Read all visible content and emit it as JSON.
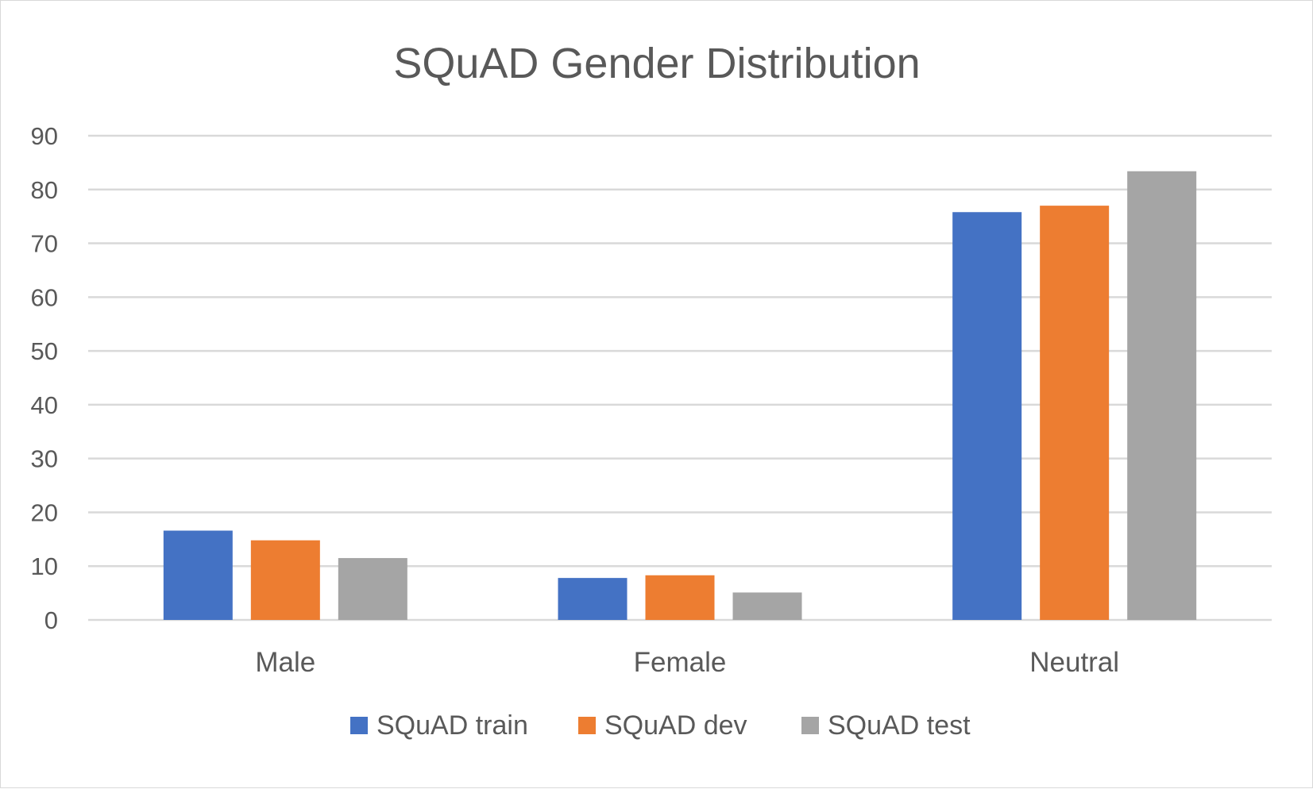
{
  "chart_data": {
    "type": "bar",
    "title": "SQuAD Gender Distribution",
    "xlabel": "",
    "ylabel": "",
    "categories": [
      "Male",
      "Female",
      "Neutral"
    ],
    "series": [
      {
        "name": "SQuAD train",
        "values": [
          16.6,
          7.8,
          75.8
        ],
        "color": "#4472c4"
      },
      {
        "name": "SQuAD dev",
        "values": [
          14.8,
          8.3,
          77.0
        ],
        "color": "#ed7d31"
      },
      {
        "name": "SQuAD test",
        "values": [
          11.5,
          5.1,
          83.4
        ],
        "color": "#a5a5a5"
      }
    ],
    "ylim": [
      0,
      90
    ],
    "yticks": [
      0,
      10,
      20,
      30,
      40,
      50,
      60,
      70,
      80,
      90
    ],
    "grid": true,
    "legend_position": "bottom"
  }
}
